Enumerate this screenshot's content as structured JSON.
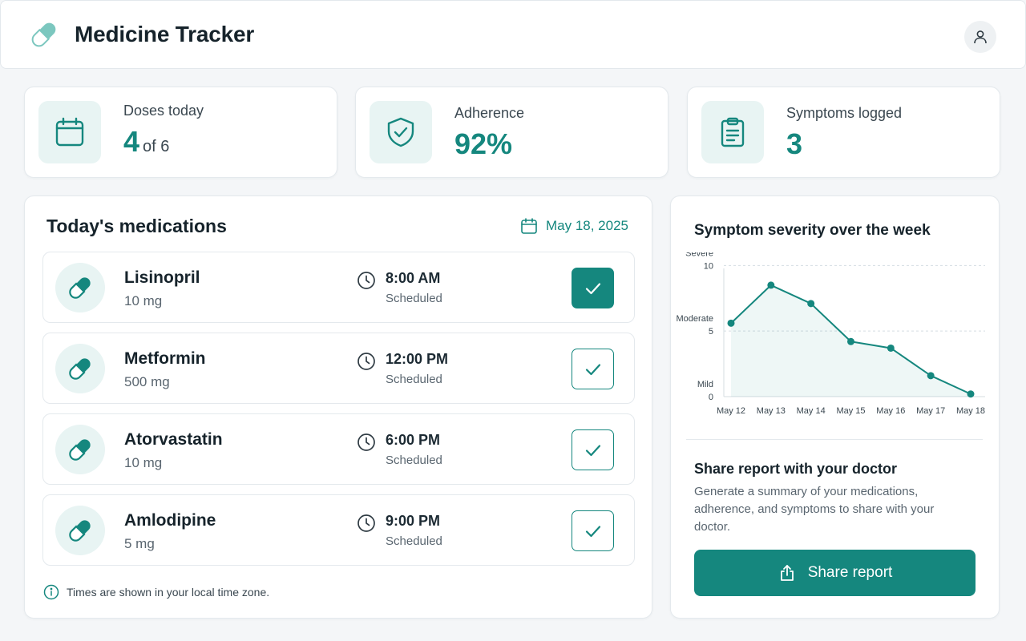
{
  "app": {
    "title": "Medicine Tracker"
  },
  "colors": {
    "accent": "#15877e",
    "accent_light": "#e8f4f3",
    "background": "#f4f6f8"
  },
  "stats": [
    {
      "label": "Doses today",
      "value": "4",
      "sub": "of 6",
      "icon": "calendar-icon"
    },
    {
      "label": "Adherence",
      "value": "92%",
      "sub": "",
      "icon": "shield-check-icon"
    },
    {
      "label": "Symptoms logged",
      "value": "3",
      "sub": "",
      "icon": "clipboard-icon"
    }
  ],
  "medications": {
    "title": "Today's medications",
    "date": "May 18, 2025",
    "note": "Times are shown in your local time zone.",
    "items": [
      {
        "name": "Lisinopril",
        "dose": "10 mg",
        "time": "8:00 AM",
        "status": "Scheduled",
        "taken": true
      },
      {
        "name": "Metformin",
        "dose": "500 mg",
        "time": "12:00 PM",
        "status": "Scheduled",
        "taken": false
      },
      {
        "name": "Atorvastatin",
        "dose": "10 mg",
        "time": "6:00 PM",
        "status": "Scheduled",
        "taken": false
      },
      {
        "name": "Amlodipine",
        "dose": "5 mg",
        "time": "9:00 PM",
        "status": "Scheduled",
        "taken": false
      }
    ]
  },
  "chart_data": {
    "type": "area",
    "title": "Symptom severity over the week",
    "categories": [
      "May 12",
      "May 13",
      "May 14",
      "May 15",
      "May 16",
      "May 17",
      "May 18"
    ],
    "values": [
      5.6,
      8.5,
      7.1,
      4.2,
      3.7,
      1.6,
      0.2
    ],
    "ylim": [
      0,
      11
    ],
    "yticks": [
      {
        "value": 10,
        "label": "10",
        "category": "Severe"
      },
      {
        "value": 5,
        "label": "5",
        "category": "Moderate"
      },
      {
        "value": 0,
        "label": "0",
        "category": "Mild"
      }
    ],
    "grid": true
  },
  "share": {
    "title": "Share report with your doctor",
    "description": "Generate a summary of your medications, adherence, and symptoms to share with your doctor.",
    "button_label": "Share report"
  }
}
